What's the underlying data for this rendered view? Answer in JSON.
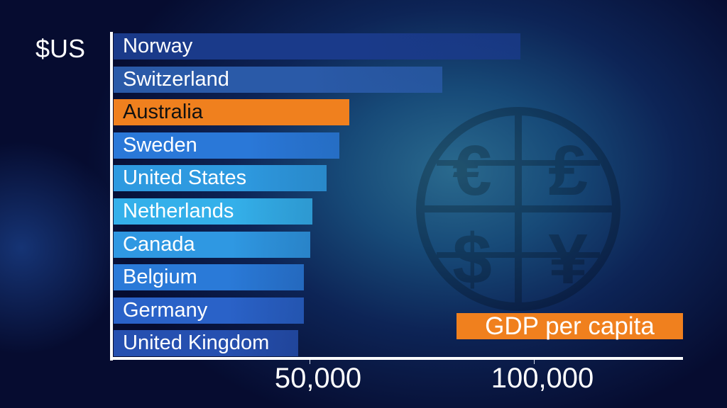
{
  "chart_data": {
    "type": "bar",
    "orientation": "horizontal",
    "ylabel": "$US",
    "categories": [
      "Norway",
      "Switzerland",
      "Australia",
      "Sweden",
      "United States",
      "Netherlands",
      "Canada",
      "Belgium",
      "Germany",
      "United Kingdom"
    ],
    "values": [
      97000,
      79600,
      58900,
      56600,
      53800,
      50600,
      50200,
      48700,
      48700,
      47500
    ],
    "highlight": "Australia",
    "xticks": [
      {
        "value": 50000,
        "label": "50,000"
      },
      {
        "value": 100000,
        "label": "100,000"
      }
    ],
    "xlim": [
      0,
      132000
    ],
    "legend": "GDP per capita",
    "legend_position": "bottom-right",
    "colors": {
      "highlight": "#f0801e",
      "bars": [
        "#1a3a8a",
        "#2a5aa8",
        "#f0801e",
        "#2a78d8",
        "#2e9ae0",
        "#34b0ea",
        "#2f98e2",
        "#2a7ad8",
        "#2a62c8",
        "#2650b0"
      ]
    },
    "background_icons": [
      "euro-icon",
      "pound-icon",
      "dollar-icon",
      "yen-icon"
    ]
  }
}
